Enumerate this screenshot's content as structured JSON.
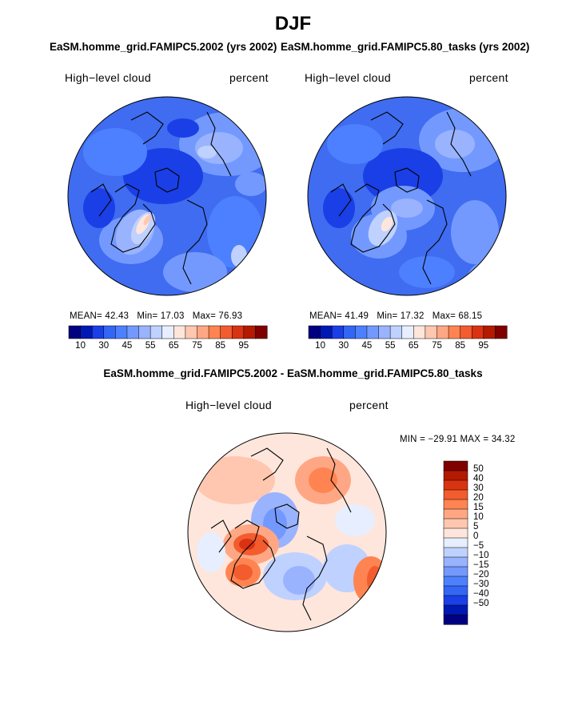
{
  "figure_title": "DJF",
  "panels": [
    {
      "id": "panel-left",
      "case_title": "EaSM.homme_grid.FAMIPC5.2002 (yrs 2002)",
      "variable_label": "High−level cloud",
      "units_label": "percent",
      "stats": {
        "mean_label": "MEAN=",
        "mean": "42.43",
        "min_label": "Min=",
        "min": "17.03",
        "max_label": "Max=",
        "max": "76.93"
      },
      "colorbar": {
        "labels": [
          "10",
          "30",
          "45",
          "55",
          "65",
          "75",
          "85",
          "95"
        ],
        "colors": [
          "#000080",
          "#0019b3",
          "#1a3fe6",
          "#3366f5",
          "#4d80ff",
          "#7399ff",
          "#99b3ff",
          "#bfd1ff",
          "#e6eeff",
          "#ffe6dc",
          "#ffc7b0",
          "#ffa784",
          "#ff8452",
          "#f25c2e",
          "#d93312",
          "#b31a00",
          "#800000"
        ]
      }
    },
    {
      "id": "panel-right",
      "case_title": "EaSM.homme_grid.FAMIPC5.80_tasks (yrs 2002)",
      "variable_label": "High−level cloud",
      "units_label": "percent",
      "stats": {
        "mean_label": "MEAN=",
        "mean": "41.49",
        "min_label": "Min=",
        "min": "17.32",
        "max_label": "Max=",
        "max": "68.15"
      },
      "colorbar": {
        "labels": [
          "10",
          "30",
          "45",
          "55",
          "65",
          "75",
          "85",
          "95"
        ],
        "colors": [
          "#000080",
          "#0019b3",
          "#1a3fe6",
          "#3366f5",
          "#4d80ff",
          "#7399ff",
          "#99b3ff",
          "#bfd1ff",
          "#e6eeff",
          "#ffe6dc",
          "#ffc7b0",
          "#ffa784",
          "#ff8452",
          "#f25c2e",
          "#d93312",
          "#b31a00",
          "#800000"
        ]
      }
    }
  ],
  "difference": {
    "title": "EaSM.homme_grid.FAMIPC5.2002 - EaSM.homme_grid.FAMIPC5.80_tasks",
    "variable_label": "High−level cloud",
    "units_label": "percent",
    "minmax_text": "MIN = −29.91  MAX =  34.32",
    "colorbar_labels": [
      "50",
      "40",
      "30",
      "20",
      "15",
      "10",
      "5",
      "0",
      "−5",
      "−10",
      "−15",
      "−20",
      "−30",
      "−40",
      "−50"
    ],
    "colorbar_colors": [
      "#800000",
      "#b31a00",
      "#d93312",
      "#f25c2e",
      "#ff8452",
      "#ffa784",
      "#ffc7b0",
      "#ffe6dc",
      "#e6eeff",
      "#bfd1ff",
      "#99b3ff",
      "#7399ff",
      "#4d80ff",
      "#3366f5",
      "#1a3fe6",
      "#0019b3",
      "#000080"
    ]
  }
}
